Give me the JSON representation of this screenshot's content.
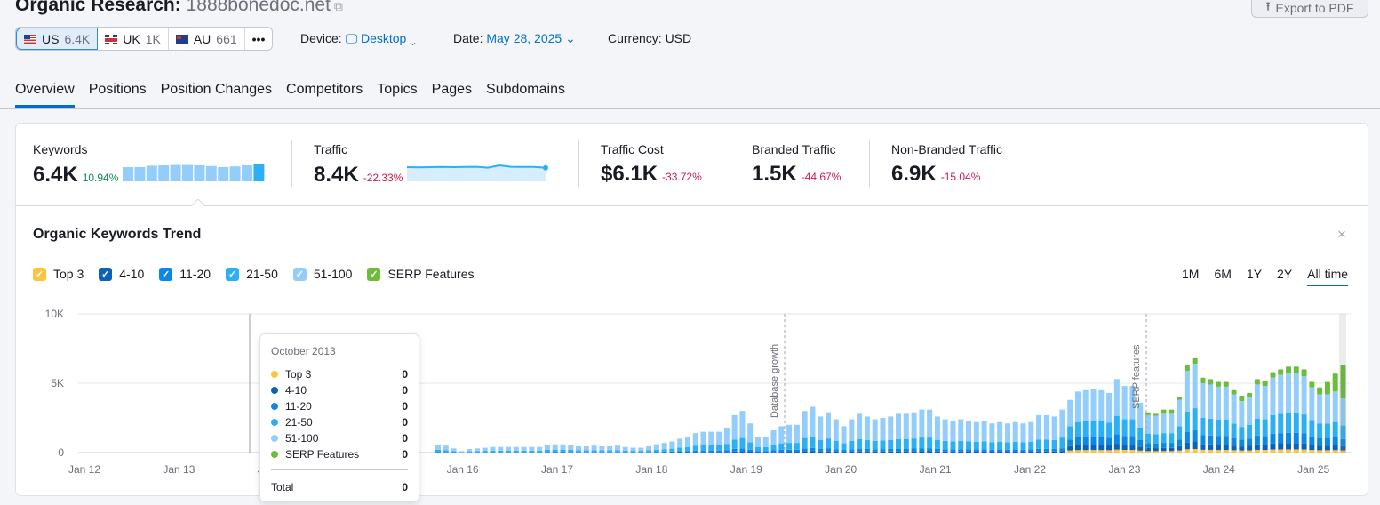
{
  "header": {
    "title": "Organic Research:",
    "domain": "1888bonedoc.net",
    "export_label": "Export to PDF"
  },
  "databases": [
    {
      "code": "US",
      "count": "6.4K"
    },
    {
      "code": "UK",
      "count": "1K"
    },
    {
      "code": "AU",
      "count": "661"
    }
  ],
  "more_label": "•••",
  "filters": {
    "device_label": "Device:",
    "device_value": "Desktop",
    "date_label": "Date:",
    "date_value": "May 28, 2025",
    "currency": "Currency: USD"
  },
  "tabs": [
    "Overview",
    "Positions",
    "Position Changes",
    "Competitors",
    "Topics",
    "Pages",
    "Subdomains"
  ],
  "metrics": [
    {
      "label": "Keywords",
      "value": "6.4K",
      "change": "10.94%",
      "trend": "up",
      "sparkline": [
        0.8,
        0.8,
        0.88,
        0.9,
        0.92,
        0.92,
        0.9,
        0.86,
        0.8,
        0.84,
        0.9,
        1
      ]
    },
    {
      "label": "Traffic",
      "value": "8.4K",
      "change": "-22.33%",
      "trend": "down",
      "sparkline": [
        0.8,
        0.79,
        0.8,
        0.81,
        0.8,
        0.81,
        0.82,
        0.77,
        0.9,
        0.82,
        0.81,
        0.81,
        0.76
      ]
    },
    {
      "label": "Traffic Cost",
      "value": "$6.1K",
      "change": "-33.72%",
      "trend": "down"
    },
    {
      "label": "Branded Traffic",
      "value": "1.5K",
      "change": "-44.67%",
      "trend": "down"
    },
    {
      "label": "Non-Branded Traffic",
      "value": "6.9K",
      "change": "-15.04%",
      "trend": "down"
    }
  ],
  "colors": {
    "top3": "#ffc43d",
    "pos4_10": "#0a63b7",
    "pos11_20": "#0b87e8",
    "pos21_50": "#2bb0f5",
    "pos51_100": "#92cdfb",
    "serp": "#6cbd3a",
    "accent": "#006dca"
  },
  "trend": {
    "title": "Organic Keywords Trend",
    "close": "×",
    "ranges": [
      "1M",
      "6M",
      "1Y",
      "2Y",
      "All time"
    ],
    "active_range": "All time"
  },
  "chart_data": {
    "type": "bar",
    "stacked": true,
    "title": "Organic Keywords Trend",
    "legend": [
      "Top 3",
      "4-10",
      "11-20",
      "21-50",
      "51-100",
      "SERP Features"
    ],
    "legend_placement": "top-left",
    "x_start": "2015-09",
    "x_interval": "month",
    "x_ticks": [
      "Jan 12",
      "Jan 13",
      "Jan 14",
      "Jan 15",
      "Jan 16",
      "Jan 17",
      "Jan 18",
      "Jan 19",
      "Jan 20",
      "Jan 21",
      "Jan 22",
      "Jan 23",
      "Jan 24",
      "Jan 25"
    ],
    "y_ticks": [
      "0",
      "5K",
      "10K"
    ],
    "ylim": [
      0,
      10000
    ],
    "grid": true,
    "annotations": [
      "Database growth",
      "SERP features"
    ],
    "totals": [
      580,
      500,
      300,
      100,
      250,
      300,
      350,
      400,
      400,
      400,
      400,
      400,
      400,
      400,
      550,
      600,
      600,
      550,
      450,
      450,
      500,
      450,
      450,
      500,
      400,
      350,
      350,
      450,
      600,
      700,
      800,
      1000,
      1100,
      1400,
      1500,
      1500,
      1500,
      1800,
      2700,
      3000,
      2100,
      1100,
      1100,
      1600,
      1900,
      2000,
      2000,
      3000,
      3300,
      2600,
      2900,
      2400,
      1900,
      2400,
      2800,
      2600,
      2400,
      2500,
      2600,
      2800,
      2800,
      2900,
      3100,
      3100,
      2600,
      2400,
      2300,
      2400,
      2300,
      2200,
      2300,
      2100,
      2200,
      2100,
      2200,
      2100,
      2200,
      2700,
      2700,
      2600,
      3100,
      3800,
      4400,
      4500,
      4600,
      4500,
      4300,
      5300,
      4800,
      4800,
      3600,
      2900,
      2800,
      3100,
      3100,
      4000,
      6300,
      6800,
      5400,
      5300,
      5100,
      5100,
      4500,
      4100,
      4300,
      5300,
      5200,
      5800,
      6000,
      6200,
      6200,
      6000,
      5100,
      4700,
      5100,
      5700,
      6300
    ],
    "serp": [
      0,
      0,
      0,
      0,
      0,
      0,
      0,
      0,
      0,
      0,
      0,
      0,
      0,
      0,
      0,
      0,
      0,
      0,
      0,
      0,
      0,
      0,
      0,
      0,
      0,
      0,
      0,
      0,
      0,
      0,
      0,
      0,
      0,
      0,
      0,
      0,
      0,
      0,
      0,
      0,
      0,
      0,
      0,
      0,
      0,
      0,
      0,
      0,
      0,
      0,
      0,
      0,
      0,
      0,
      0,
      0,
      0,
      0,
      0,
      0,
      0,
      0,
      0,
      0,
      0,
      0,
      0,
      0,
      0,
      0,
      0,
      0,
      0,
      0,
      0,
      0,
      0,
      0,
      0,
      0,
      0,
      0,
      0,
      0,
      0,
      0,
      0,
      0,
      0,
      0,
      0,
      200,
      150,
      300,
      300,
      200,
      400,
      400,
      400,
      400,
      350,
      350,
      300,
      400,
      300,
      400,
      400,
      400,
      400,
      500,
      500,
      500,
      400,
      500,
      900,
      1300,
      2400
    ],
    "composition": [
      {
        "from_index": 0,
        "shares": {
          "Top 3": 0,
          "4-10": 0.03,
          "11-20": 0.07,
          "21-50": 0.25,
          "51-100": 0.65
        }
      },
      {
        "from_index": 81,
        "shares": {
          "Top 3": 0.04,
          "4-10": 0.08,
          "11-20": 0.13,
          "21-50": 0.25,
          "51-100": 0.5
        }
      }
    ]
  },
  "tooltip": {
    "date": "October 2013",
    "rows": [
      {
        "label": "Top 3",
        "value": "0"
      },
      {
        "label": "4-10",
        "value": "0"
      },
      {
        "label": "11-20",
        "value": "0"
      },
      {
        "label": "21-50",
        "value": "0"
      },
      {
        "label": "51-100",
        "value": "0"
      },
      {
        "label": "SERP Features",
        "value": "0"
      }
    ],
    "total_label": "Total",
    "total_value": "0"
  }
}
